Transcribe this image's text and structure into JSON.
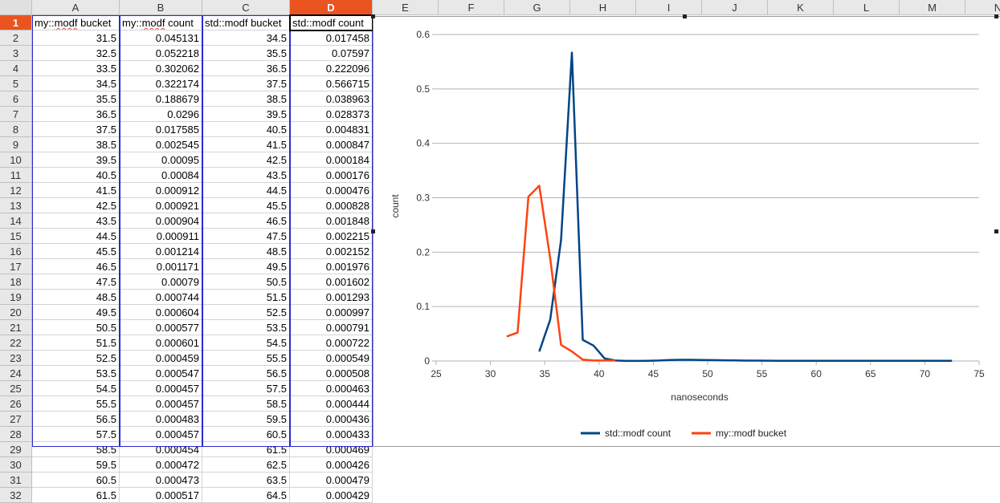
{
  "columns": [
    "A",
    "B",
    "C",
    "D",
    "E",
    "F",
    "G",
    "H",
    "I",
    "J",
    "K",
    "L",
    "M",
    "N"
  ],
  "active_column": "D",
  "active_row": "1",
  "rows": [
    "1",
    "2",
    "3",
    "4",
    "5",
    "6",
    "7",
    "8",
    "9",
    "10",
    "11",
    "12",
    "13",
    "14",
    "15",
    "16",
    "17",
    "18",
    "19",
    "20",
    "21",
    "22",
    "23",
    "24",
    "25",
    "26",
    "27",
    "28",
    "29",
    "30",
    "31",
    "32"
  ],
  "headers": [
    "my::modf bucket",
    "my::modf count",
    "std::modf bucket",
    "std::modf count"
  ],
  "table": [
    [
      "31.5",
      "0.045131",
      "34.5",
      "0.017458"
    ],
    [
      "32.5",
      "0.052218",
      "35.5",
      "0.07597"
    ],
    [
      "33.5",
      "0.302062",
      "36.5",
      "0.222096"
    ],
    [
      "34.5",
      "0.322174",
      "37.5",
      "0.566715"
    ],
    [
      "35.5",
      "0.188679",
      "38.5",
      "0.038963"
    ],
    [
      "36.5",
      "0.0296",
      "39.5",
      "0.028373"
    ],
    [
      "37.5",
      "0.017585",
      "40.5",
      "0.004831"
    ],
    [
      "38.5",
      "0.002545",
      "41.5",
      "0.000847"
    ],
    [
      "39.5",
      "0.00095",
      "42.5",
      "0.000184"
    ],
    [
      "40.5",
      "0.00084",
      "43.5",
      "0.000176"
    ],
    [
      "41.5",
      "0.000912",
      "44.5",
      "0.000476"
    ],
    [
      "42.5",
      "0.000921",
      "45.5",
      "0.000828"
    ],
    [
      "43.5",
      "0.000904",
      "46.5",
      "0.001848"
    ],
    [
      "44.5",
      "0.000911",
      "47.5",
      "0.002215"
    ],
    [
      "45.5",
      "0.001214",
      "48.5",
      "0.002152"
    ],
    [
      "46.5",
      "0.001171",
      "49.5",
      "0.001976"
    ],
    [
      "47.5",
      "0.00079",
      "50.5",
      "0.001602"
    ],
    [
      "48.5",
      "0.000744",
      "51.5",
      "0.001293"
    ],
    [
      "49.5",
      "0.000604",
      "52.5",
      "0.000997"
    ],
    [
      "50.5",
      "0.000577",
      "53.5",
      "0.000791"
    ],
    [
      "51.5",
      "0.000601",
      "54.5",
      "0.000722"
    ],
    [
      "52.5",
      "0.000459",
      "55.5",
      "0.000549"
    ],
    [
      "53.5",
      "0.000547",
      "56.5",
      "0.000508"
    ],
    [
      "54.5",
      "0.000457",
      "57.5",
      "0.000463"
    ],
    [
      "55.5",
      "0.000457",
      "58.5",
      "0.000444"
    ],
    [
      "56.5",
      "0.000483",
      "59.5",
      "0.000436"
    ],
    [
      "57.5",
      "0.000457",
      "60.5",
      "0.000433"
    ],
    [
      "58.5",
      "0.000454",
      "61.5",
      "0.000469"
    ],
    [
      "59.5",
      "0.000472",
      "62.5",
      "0.000426"
    ],
    [
      "60.5",
      "0.000473",
      "63.5",
      "0.000479"
    ],
    [
      "61.5",
      "0.000517",
      "64.5",
      "0.000429"
    ]
  ],
  "colors": {
    "std_series": "#004586",
    "my_series": "#ff420e",
    "selection_orange": "#e95420",
    "gridline": "#b3b3b3"
  },
  "chart_data": {
    "type": "line",
    "title": "",
    "xlabel": "nanoseconds",
    "ylabel": "count",
    "xlim": [
      25,
      75
    ],
    "ylim": [
      0,
      0.6
    ],
    "xticks": [
      "25",
      "30",
      "35",
      "40",
      "45",
      "50",
      "55",
      "60",
      "65",
      "70",
      "75"
    ],
    "yticks": [
      "0",
      "0.1",
      "0.2",
      "0.3",
      "0.4",
      "0.5",
      "0.6"
    ],
    "grid": true,
    "legend_position": "bottom",
    "series": [
      {
        "name": "std::modf count",
        "color": "#004586",
        "x": [
          34.5,
          35.5,
          36.5,
          37.5,
          38.5,
          39.5,
          40.5,
          41.5,
          42.5,
          43.5,
          44.5,
          45.5,
          46.5,
          47.5,
          48.5,
          49.5,
          50.5,
          51.5,
          52.5,
          53.5,
          54.5,
          55.5,
          56.5,
          57.5,
          58.5,
          59.5,
          60.5,
          61.5,
          62.5,
          63.5,
          64.5,
          65.5,
          66.5,
          67.5,
          68.5,
          69.5,
          70.5,
          71.5,
          72.5
        ],
        "y": [
          0.017458,
          0.07597,
          0.222096,
          0.566715,
          0.038963,
          0.028373,
          0.004831,
          0.000847,
          0.000184,
          0.000176,
          0.000476,
          0.000828,
          0.001848,
          0.002215,
          0.002152,
          0.001976,
          0.001602,
          0.001293,
          0.000997,
          0.000791,
          0.000722,
          0.000549,
          0.000508,
          0.000463,
          0.000444,
          0.000436,
          0.000433,
          0.000469,
          0.000426,
          0.000479,
          0.000429,
          0.00043,
          0.00043,
          0.00043,
          0.00043,
          0.00043,
          0.00043,
          0.00043,
          0.00043
        ]
      },
      {
        "name": "my::modf bucket",
        "color": "#ff420e",
        "x": [
          31.5,
          32.5,
          33.5,
          34.5,
          35.5,
          36.5,
          37.5,
          38.5,
          39.5,
          40.5,
          41.5
        ],
        "y": [
          0.045131,
          0.052218,
          0.302062,
          0.322174,
          0.188679,
          0.0296,
          0.017585,
          0.002545,
          0.00095,
          0.00084,
          0.000912
        ]
      }
    ]
  }
}
